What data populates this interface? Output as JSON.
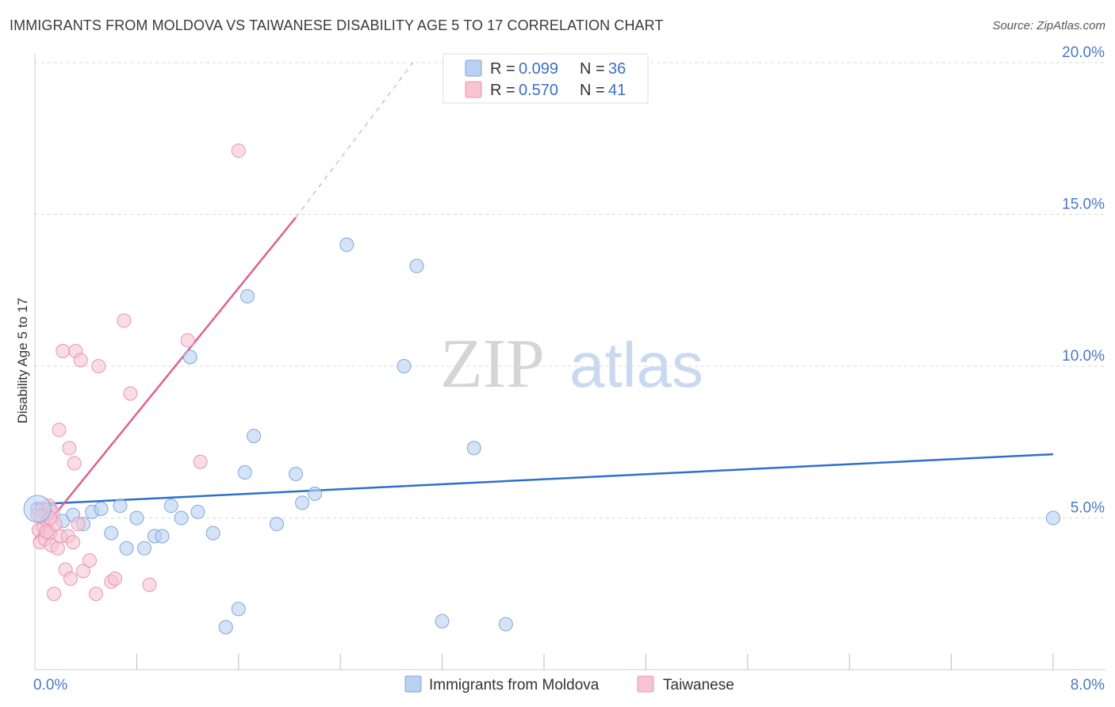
{
  "title": "IMMIGRANTS FROM MOLDOVA VS TAIWANESE DISABILITY AGE 5 TO 17 CORRELATION CHART",
  "source": "Source: ZipAtlas.com",
  "watermark": {
    "zip": "ZIP",
    "atlas": "atlas"
  },
  "colors": {
    "blue_fill": "#b9d1f2",
    "blue_stroke": "#7fa6de",
    "blue_line": "#2f6fcc",
    "pink_fill": "#f7c4d4",
    "pink_stroke": "#e995b1",
    "pink_line": "#e0608f",
    "tick_label": "#4a78c4",
    "grid": "#d9d9d9"
  },
  "chart_data": {
    "type": "scatter",
    "title": "IMMIGRANTS FROM MOLDOVA VS TAIWANESE DISABILITY AGE 5 TO 17 CORRELATION CHART",
    "xlabel": "",
    "ylabel": "Disability Age 5 to 17",
    "xlim": [
      0,
      8.4
    ],
    "ylim": [
      0,
      20.5
    ],
    "x_tick_labels": [
      {
        "value": 0,
        "label": "0.0%"
      },
      {
        "value": 8,
        "label": "8.0%"
      }
    ],
    "y_tick_labels": [
      {
        "value": 5,
        "label": "5.0%"
      },
      {
        "value": 10,
        "label": "10.0%"
      },
      {
        "value": 15,
        "label": "15.0%"
      },
      {
        "value": 20,
        "label": "20.0%"
      }
    ],
    "grid": true,
    "legend_position": "top-center",
    "legend": [
      {
        "r_label": "R = ",
        "r_value": "0.099",
        "n_label": "N = ",
        "n_value": "36"
      },
      {
        "r_label": "R = ",
        "r_value": "0.570",
        "n_label": "N = ",
        "n_value": "41"
      }
    ],
    "series": [
      {
        "name": "Immigrants from Moldova",
        "color": "#7fa6de",
        "trend": {
          "x0": 0.0,
          "y0": 5.45,
          "x1": 8.0,
          "y1": 7.1
        },
        "points": [
          [
            0.02,
            5.3
          ],
          [
            0.12,
            5.3
          ],
          [
            0.22,
            4.9
          ],
          [
            0.3,
            5.1
          ],
          [
            0.38,
            4.8
          ],
          [
            0.45,
            5.2
          ],
          [
            0.52,
            5.3
          ],
          [
            0.6,
            4.5
          ],
          [
            0.67,
            5.4
          ],
          [
            0.72,
            4.0
          ],
          [
            0.8,
            5.0
          ],
          [
            0.86,
            4.0
          ],
          [
            0.94,
            4.4
          ],
          [
            1.0,
            4.4
          ],
          [
            1.07,
            5.4
          ],
          [
            1.15,
            5.0
          ],
          [
            1.22,
            10.3
          ],
          [
            1.28,
            5.2
          ],
          [
            1.4,
            4.5
          ],
          [
            1.5,
            1.4
          ],
          [
            1.6,
            2.0
          ],
          [
            1.65,
            6.5
          ],
          [
            1.72,
            7.7
          ],
          [
            1.67,
            12.3
          ],
          [
            1.9,
            4.8
          ],
          [
            2.05,
            6.45
          ],
          [
            2.1,
            5.5
          ],
          [
            2.2,
            5.8
          ],
          [
            2.45,
            14.0
          ],
          [
            2.9,
            10.0
          ],
          [
            3.0,
            13.3
          ],
          [
            3.2,
            1.6
          ],
          [
            3.45,
            7.3
          ],
          [
            3.7,
            1.5
          ],
          [
            8.0,
            5.0
          ],
          [
            0.08,
            5.15
          ]
        ]
      },
      {
        "name": "Taiwanese",
        "color": "#e995b1",
        "trend": {
          "x0": 0.0,
          "y0": 4.3,
          "x1": 2.05,
          "y1": 14.9,
          "dash_to_x": 2.97,
          "dash_to_y": 20.0
        },
        "points": [
          [
            0.02,
            5.1
          ],
          [
            0.03,
            4.6
          ],
          [
            0.04,
            4.2
          ],
          [
            0.06,
            5.3
          ],
          [
            0.07,
            4.7
          ],
          [
            0.08,
            4.3
          ],
          [
            0.1,
            4.9
          ],
          [
            0.11,
            5.4
          ],
          [
            0.12,
            4.5
          ],
          [
            0.13,
            4.1
          ],
          [
            0.14,
            5.2
          ],
          [
            0.15,
            2.5
          ],
          [
            0.16,
            4.8
          ],
          [
            0.18,
            4.0
          ],
          [
            0.19,
            7.9
          ],
          [
            0.2,
            4.4
          ],
          [
            0.22,
            10.5
          ],
          [
            0.24,
            3.3
          ],
          [
            0.26,
            4.4
          ],
          [
            0.27,
            7.3
          ],
          [
            0.28,
            3.0
          ],
          [
            0.3,
            4.2
          ],
          [
            0.31,
            6.8
          ],
          [
            0.32,
            10.5
          ],
          [
            0.34,
            4.8
          ],
          [
            0.36,
            10.2
          ],
          [
            0.38,
            3.25
          ],
          [
            0.43,
            3.6
          ],
          [
            0.48,
            2.5
          ],
          [
            0.5,
            10.0
          ],
          [
            0.6,
            2.9
          ],
          [
            0.63,
            3.0
          ],
          [
            0.7,
            11.5
          ],
          [
            0.75,
            9.1
          ],
          [
            0.9,
            2.8
          ],
          [
            1.2,
            10.85
          ],
          [
            1.3,
            6.85
          ],
          [
            1.6,
            17.1
          ],
          [
            0.05,
            5.05
          ],
          [
            0.09,
            4.55
          ],
          [
            0.12,
            5.0
          ]
        ]
      }
    ]
  }
}
